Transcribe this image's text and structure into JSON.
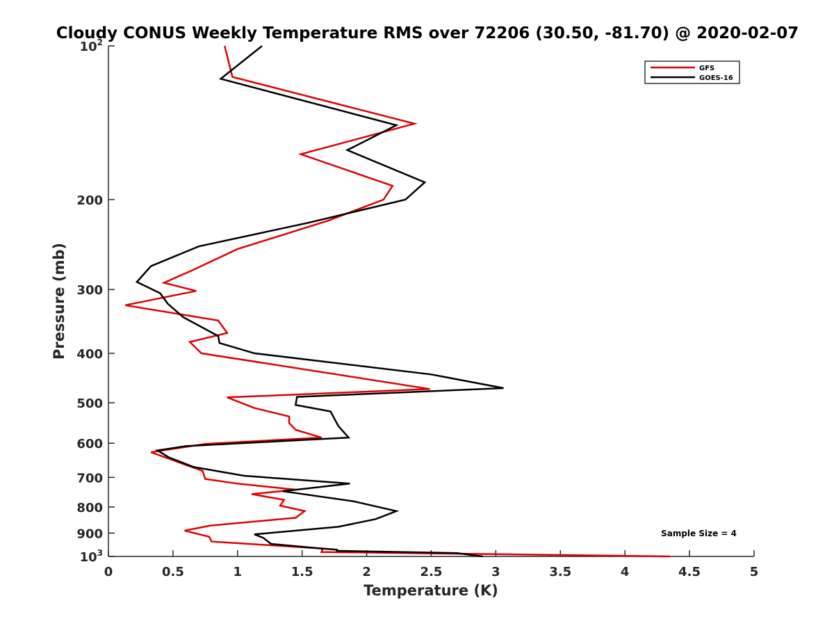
{
  "chart_data": {
    "type": "line",
    "title": "Cloudy CONUS Weekly Temperature RMS over 72206 (30.50, -81.70) @ 2020-02-07",
    "xlabel": "Temperature (K)",
    "ylabel": "Pressure (mb)",
    "xlim": [
      0,
      5
    ],
    "ylim": [
      100,
      1000
    ],
    "yscale": "log",
    "yreversed": true,
    "xticks": [
      {
        "value": 0,
        "label": "0"
      },
      {
        "value": 0.5,
        "label": "0.5"
      },
      {
        "value": 1,
        "label": "1"
      },
      {
        "value": 1.5,
        "label": "1.5"
      },
      {
        "value": 2,
        "label": "2"
      },
      {
        "value": 2.5,
        "label": "2.5"
      },
      {
        "value": 3,
        "label": "3"
      },
      {
        "value": 3.5,
        "label": "3.5"
      },
      {
        "value": 4,
        "label": "4"
      },
      {
        "value": 4.5,
        "label": "4.5"
      },
      {
        "value": 5,
        "label": "5"
      }
    ],
    "yticks": [
      {
        "value": 100,
        "base": "10",
        "exp": "2"
      },
      {
        "value": 200,
        "base": "200",
        "exp": ""
      },
      {
        "value": 300,
        "base": "300",
        "exp": ""
      },
      {
        "value": 400,
        "base": "400",
        "exp": ""
      },
      {
        "value": 500,
        "base": "500",
        "exp": ""
      },
      {
        "value": 600,
        "base": "600",
        "exp": ""
      },
      {
        "value": 700,
        "base": "700",
        "exp": ""
      },
      {
        "value": 800,
        "base": "800",
        "exp": ""
      },
      {
        "value": 900,
        "base": "900",
        "exp": ""
      },
      {
        "value": 1000,
        "base": "10",
        "exp": "3"
      }
    ],
    "legend": {
      "position": "top-right",
      "entries": [
        "GFS",
        "GOES-16"
      ]
    },
    "annotation": "Sample Size = 4",
    "grid": false,
    "series": [
      {
        "name": "GFS",
        "color": "#e00000",
        "temperature": [
          0.9,
          0.96,
          2.37,
          1.49,
          2.2,
          2.13,
          1.7,
          1.0,
          0.65,
          0.43,
          0.68,
          0.13,
          0.85,
          0.92,
          0.63,
          0.72,
          2.49,
          0.92,
          1.13,
          1.4,
          1.4,
          1.45,
          1.65,
          0.75,
          0.33,
          0.73,
          0.75,
          1.0,
          1.45,
          1.11,
          1.36,
          1.33,
          1.52,
          1.45,
          0.79,
          0.59,
          0.78,
          0.8,
          1.66,
          1.65,
          4.35
        ],
        "pressure": [
          100,
          115,
          142,
          163,
          188,
          200,
          220,
          250,
          275,
          291,
          302,
          322,
          345,
          365,
          380,
          400,
          470,
          488,
          512,
          532,
          548,
          565,
          585,
          602,
          625,
          680,
          705,
          720,
          740,
          755,
          775,
          795,
          815,
          840,
          870,
          890,
          915,
          935,
          965,
          980,
          1000
        ]
      },
      {
        "name": "GOES-16",
        "color": "#000000",
        "temperature": [
          1.19,
          0.87,
          2.23,
          1.85,
          2.45,
          2.3,
          1.55,
          0.7,
          0.33,
          0.22,
          0.4,
          0.46,
          0.58,
          0.85,
          0.86,
          1.13,
          2.5,
          3.06,
          1.46,
          1.45,
          1.72,
          1.78,
          1.86,
          0.6,
          0.38,
          0.47,
          0.66,
          1.05,
          1.87,
          1.35,
          1.9,
          2.23,
          2.07,
          1.78,
          1.13,
          1.2,
          1.26,
          1.65,
          1.77,
          1.77,
          2.7,
          2.9
        ],
        "pressure": [
          100,
          116,
          143,
          160,
          185,
          200,
          222,
          247,
          270,
          290,
          305,
          320,
          340,
          370,
          382,
          400,
          440,
          468,
          487,
          505,
          520,
          555,
          585,
          608,
          620,
          640,
          668,
          695,
          720,
          745,
          780,
          815,
          845,
          875,
          905,
          920,
          945,
          965,
          970,
          975,
          985,
          1000
        ]
      }
    ]
  }
}
